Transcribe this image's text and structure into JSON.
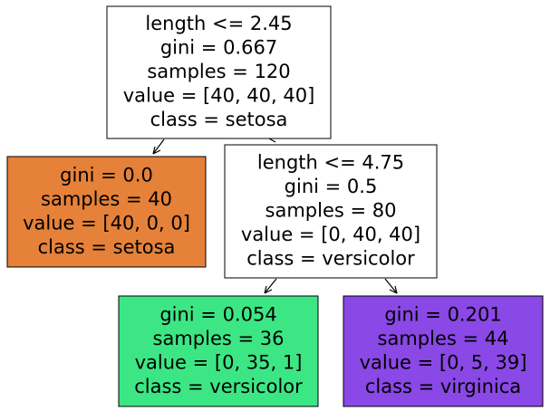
{
  "nodes": [
    {
      "lines": [
        "length <= 2.45",
        "gini = 0.667",
        "samples = 120",
        "value = [40, 40, 40]",
        "class = setosa"
      ],
      "color": "#ffffff"
    },
    {
      "lines": [
        "gini = 0.0",
        "samples = 40",
        "value = [40, 0, 0]",
        "class = setosa"
      ],
      "color": "#e58139"
    },
    {
      "lines": [
        "length <= 4.75",
        "gini = 0.5",
        "samples = 80",
        "value = [0, 40, 40]",
        "class = versicolor"
      ],
      "color": "#ffffff"
    },
    {
      "lines": [
        "gini = 0.054",
        "samples = 36",
        "value = [0, 35, 1]",
        "class = versicolor"
      ],
      "color": "#3de684"
    },
    {
      "lines": [
        "gini = 0.201",
        "samples = 44",
        "value = [0, 5, 39]",
        "class = virginica"
      ],
      "color": "#8a48e6"
    }
  ]
}
